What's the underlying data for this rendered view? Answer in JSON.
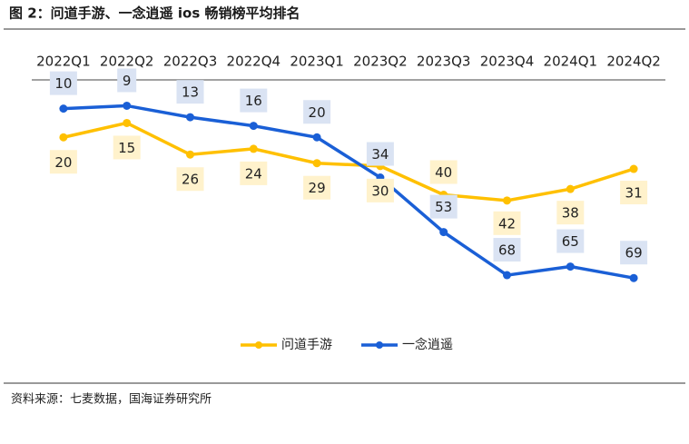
{
  "chart_data": {
    "type": "line",
    "title": "图 2：问道手游、一念逍遥 ios 畅销榜平均排名",
    "source": "资料来源：七麦数据，国海证券研究所",
    "categories": [
      "2022Q1",
      "2022Q2",
      "2022Q3",
      "2022Q4",
      "2023Q1",
      "2023Q2",
      "2023Q3",
      "2023Q4",
      "2024Q1",
      "2024Q2"
    ],
    "series": [
      {
        "name": "问道手游",
        "color": "#FFC000",
        "label_bg": "#FFF2CC",
        "values": [
          20,
          15,
          26,
          24,
          29,
          30,
          40,
          42,
          38,
          31
        ]
      },
      {
        "name": "一念逍遥",
        "color": "#1A5FD6",
        "label_bg": "#DAE3F3",
        "values": [
          10,
          9,
          13,
          16,
          20,
          34,
          53,
          68,
          65,
          69
        ]
      }
    ],
    "ylim": [
      0,
      80
    ],
    "y_reversed": true,
    "legend": "bottom"
  }
}
